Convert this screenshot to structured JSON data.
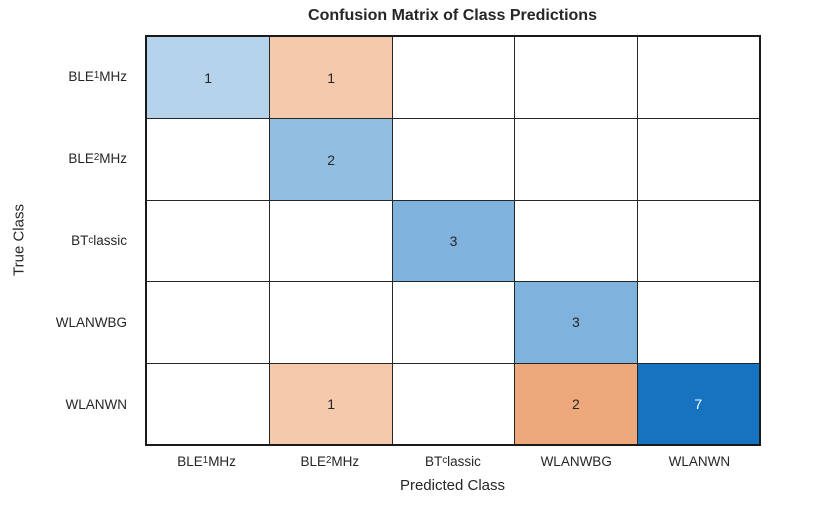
{
  "title": "Confusion Matrix of Class Predictions",
  "axes": {
    "x_label": "Predicted Class",
    "y_label": "True Class"
  },
  "chart_data": {
    "type": "heatmap",
    "subtype": "confusion-matrix",
    "title": "Confusion Matrix of Class Predictions",
    "xlabel": "Predicted Class",
    "ylabel": "True Class",
    "x_categories": [
      "BLE1MHz",
      "BLE2MHz",
      "BTclassic",
      "WLANWBG",
      "WLANWN"
    ],
    "y_categories": [
      "BLE1MHz",
      "BLE2MHz",
      "BTclassic",
      "WLANWBG",
      "WLANWN"
    ],
    "class_parts": [
      {
        "pre": "BLE",
        "sub": "1",
        "post": "MHz"
      },
      {
        "pre": "BLE",
        "sub": "2",
        "post": "MHz"
      },
      {
        "pre": "BT",
        "sub": "c",
        "post": "lassic"
      },
      {
        "pre": "WLANWBG",
        "sub": "",
        "post": ""
      },
      {
        "pre": "WLANWN",
        "sub": "",
        "post": ""
      }
    ],
    "matrix": [
      [
        1,
        1,
        0,
        0,
        0
      ],
      [
        0,
        2,
        0,
        0,
        0
      ],
      [
        0,
        0,
        3,
        0,
        0
      ],
      [
        0,
        0,
        0,
        3,
        0
      ],
      [
        0,
        1,
        0,
        2,
        7
      ]
    ],
    "cells": [
      {
        "row": 0,
        "col": 0,
        "value": 1,
        "bg": "#b5d3ea",
        "fg": "#262626"
      },
      {
        "row": 0,
        "col": 1,
        "value": 1,
        "bg": "#f5c9ab",
        "fg": "#262626"
      },
      {
        "row": 1,
        "col": 1,
        "value": 2,
        "bg": "#92bfe1",
        "fg": "#262626"
      },
      {
        "row": 2,
        "col": 2,
        "value": 3,
        "bg": "#7fb2dd",
        "fg": "#262626"
      },
      {
        "row": 3,
        "col": 3,
        "value": 3,
        "bg": "#7fb2dd",
        "fg": "#262626"
      },
      {
        "row": 4,
        "col": 1,
        "value": 1,
        "bg": "#f5c9ab",
        "fg": "#262626"
      },
      {
        "row": 4,
        "col": 3,
        "value": 2,
        "bg": "#eda97c",
        "fg": "#262626"
      },
      {
        "row": 4,
        "col": 4,
        "value": 7,
        "bg": "#1673bf",
        "fg": "#ffffff"
      }
    ],
    "empty_cell_bg": "#ffffff",
    "grid_line_color": "#262626",
    "outer_border_color": "#1a1a1a",
    "diagonal_accent": "#1673bf",
    "offdiagonal_accent": "#eda97c",
    "grid": true,
    "legend": "none"
  }
}
